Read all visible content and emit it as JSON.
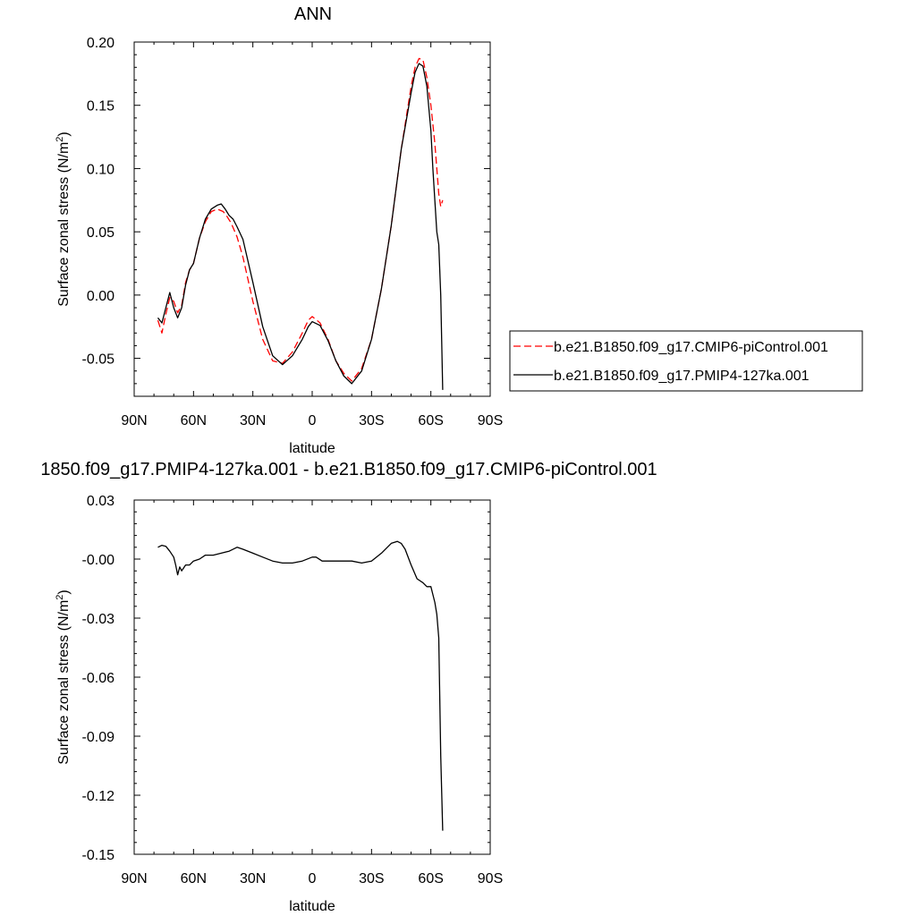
{
  "colors": {
    "control": "#ff0000",
    "experiment": "#000000",
    "axes": "#000000"
  },
  "chart_data": [
    {
      "type": "line",
      "title": "ANN",
      "xlabel": "latitude",
      "ylabel": "Surface zonal stress (N/m²)",
      "ylabel_parts": {
        "main": "Surface zonal stress (N/m",
        "sup": "2",
        "close": ")"
      },
      "xlim": [
        90,
        -90
      ],
      "ylim": [
        -0.08,
        0.2
      ],
      "xticks": [
        90,
        60,
        30,
        0,
        -30,
        -60,
        -90
      ],
      "xticklabels": [
        "90N",
        "60N",
        "30N",
        "0",
        "30S",
        "60S",
        "90S"
      ],
      "yticks": [
        0.2,
        0.15,
        0.1,
        0.05,
        0.0,
        -0.05
      ],
      "yticklabels": [
        "0.20",
        "0.15",
        "0.10",
        "0.05",
        "0.00",
        "-0.05"
      ],
      "legend_position": "right",
      "series": [
        {
          "name": "b.e21.B1850.f09_g17.CMIP6-piControl.001",
          "color": "#ff0000",
          "style": "dashed",
          "x": [
            78,
            76,
            74,
            72,
            70,
            68,
            66,
            64,
            62,
            60,
            57,
            54,
            51,
            48,
            45,
            43,
            41,
            38,
            35,
            30,
            25,
            20,
            15,
            10,
            5,
            2,
            0,
            -4,
            -8,
            -12,
            -16,
            -20,
            -25,
            -30,
            -35,
            -40,
            -45,
            -50,
            -52,
            -54,
            -56,
            -58,
            -60,
            -62,
            -63,
            -64,
            -65,
            -66
          ],
          "y": [
            -0.02,
            -0.03,
            -0.015,
            -0.002,
            -0.005,
            -0.014,
            -0.008,
            0.01,
            0.02,
            0.025,
            0.045,
            0.058,
            0.066,
            0.068,
            0.066,
            0.062,
            0.057,
            0.046,
            0.03,
            -0.005,
            -0.035,
            -0.052,
            -0.054,
            -0.045,
            -0.03,
            -0.02,
            -0.017,
            -0.022,
            -0.035,
            -0.052,
            -0.062,
            -0.068,
            -0.058,
            -0.035,
            0.005,
            0.055,
            0.115,
            0.165,
            0.18,
            0.187,
            0.186,
            0.172,
            0.15,
            0.12,
            0.1,
            0.08,
            0.07,
            0.075
          ]
        },
        {
          "name": "b.e21.B1850.f09_g17.PMIP4-127ka.001",
          "color": "#000000",
          "style": "solid",
          "x": [
            78,
            76,
            74,
            72,
            70,
            68,
            66,
            64,
            62,
            60,
            57,
            54,
            51,
            48,
            46,
            44,
            42,
            40,
            38,
            35,
            30,
            25,
            20,
            15,
            10,
            5,
            2,
            0,
            -4,
            -8,
            -12,
            -16,
            -20,
            -25,
            -30,
            -35,
            -40,
            -45,
            -50,
            -52,
            -54,
            -56,
            -58,
            -60,
            -61,
            -62,
            -63,
            -64,
            -65,
            -66
          ],
          "y": [
            -0.018,
            -0.022,
            -0.01,
            0.002,
            -0.01,
            -0.018,
            -0.01,
            0.008,
            0.02,
            0.025,
            0.045,
            0.06,
            0.068,
            0.071,
            0.072,
            0.068,
            0.063,
            0.06,
            0.054,
            0.044,
            0.01,
            -0.025,
            -0.048,
            -0.055,
            -0.048,
            -0.035,
            -0.025,
            -0.021,
            -0.024,
            -0.036,
            -0.052,
            -0.064,
            -0.07,
            -0.06,
            -0.035,
            0.005,
            0.055,
            0.115,
            0.16,
            0.176,
            0.183,
            0.181,
            0.165,
            0.13,
            0.1,
            0.075,
            0.05,
            0.04,
            0.0,
            -0.075
          ]
        }
      ]
    },
    {
      "type": "line",
      "title": "1850.f09_g17.PMIP4-127ka.001 - b.e21.B1850.f09_g17.CMIP6-piControl.001",
      "xlabel": "latitude",
      "ylabel": "Surface zonal stress (N/m²)",
      "ylabel_parts": {
        "main": "Surface zonal stress (N/m",
        "sup": "2",
        "close": ")"
      },
      "xlim": [
        90,
        -90
      ],
      "ylim": [
        -0.15,
        0.03
      ],
      "xticks": [
        90,
        60,
        30,
        0,
        -30,
        -60,
        -90
      ],
      "xticklabels": [
        "90N",
        "60N",
        "30N",
        "0",
        "30S",
        "60S",
        "90S"
      ],
      "yticks": [
        0.03,
        0.0,
        -0.03,
        -0.06,
        -0.09,
        -0.12,
        -0.15
      ],
      "yticklabels": [
        "0.03",
        "-0.00",
        "-0.03",
        "-0.06",
        "-0.09",
        "-0.12",
        "-0.15"
      ],
      "series": [
        {
          "name": "",
          "color": "#000000",
          "style": "solid",
          "x": [
            78,
            76,
            74,
            72,
            70,
            69,
            68,
            67,
            66,
            64,
            62,
            60,
            57,
            54,
            50,
            46,
            42,
            38,
            35,
            30,
            25,
            20,
            15,
            10,
            5,
            0,
            -2,
            -5,
            -10,
            -15,
            -20,
            -25,
            -30,
            -35,
            -40,
            -43,
            -45,
            -47,
            -50,
            -53,
            -56,
            -58,
            -60,
            -61,
            -62,
            -63,
            -64,
            -65,
            -66
          ],
          "y": [
            0.006,
            0.007,
            0.0065,
            0.004,
            0.001,
            -0.003,
            -0.008,
            -0.004,
            -0.006,
            -0.003,
            -0.003,
            -0.001,
            0.0,
            0.002,
            0.002,
            0.003,
            0.004,
            0.006,
            0.005,
            0.003,
            0.001,
            -0.001,
            -0.002,
            -0.002,
            -0.001,
            0.001,
            0.001,
            -0.001,
            -0.001,
            -0.001,
            -0.001,
            -0.002,
            -0.001,
            0.003,
            0.008,
            0.009,
            0.008,
            0.005,
            -0.003,
            -0.01,
            -0.012,
            -0.014,
            -0.014,
            -0.018,
            -0.022,
            -0.028,
            -0.04,
            -0.1,
            -0.138
          ]
        }
      ]
    }
  ]
}
